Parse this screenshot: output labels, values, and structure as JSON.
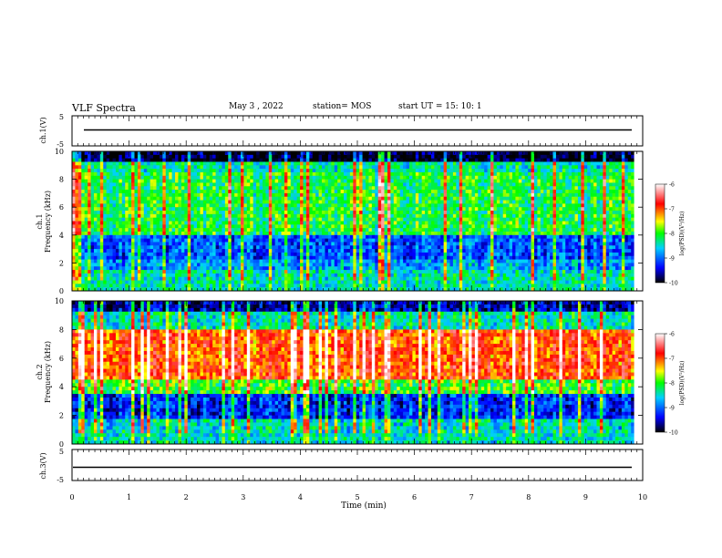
{
  "header": {
    "title": "VLF Spectra",
    "date": "May 3  , 2022",
    "station": "station= MOS",
    "start": "start  UT  =   15: 10: 1"
  },
  "chart_data": [
    {
      "type": "line",
      "name": "ch1-voltage",
      "ylabel": "ch.1(V)",
      "ylim": [
        -5,
        5
      ],
      "yticks": [
        "5",
        "-5"
      ],
      "xlim": [
        0,
        10
      ],
      "approx_level": 0
    },
    {
      "type": "heatmap",
      "name": "ch1-spectrogram",
      "ylabel": "ch.1\nFrequency (kHz)",
      "ylim": [
        0,
        10
      ],
      "yticks": [
        "0",
        "2",
        "4",
        "6",
        "8",
        "10"
      ],
      "xlim": [
        0,
        10
      ],
      "data_end_min": 9.85,
      "colorbar": {
        "label": "log(PSD)(V²/Hz)",
        "range": [
          -10,
          -6
        ],
        "ticks": [
          "-6",
          "-7",
          "-8",
          "-9",
          "-10"
        ]
      },
      "approx_profile_log_psd": {
        "0-1.5kHz": -8.5,
        "1.5-4kHz": -9.2,
        "4-9kHz": -8.2,
        "9-10kHz": -9.8
      }
    },
    {
      "type": "heatmap",
      "name": "ch2-spectrogram",
      "ylabel": "ch.2\nFrequency (kHz)",
      "ylim": [
        0,
        10
      ],
      "yticks": [
        "0",
        "2",
        "4",
        "6",
        "8",
        "10"
      ],
      "xlim": [
        0,
        10
      ],
      "data_end_min": 9.85,
      "colorbar": {
        "label": "log(PSD)(V²/Hz)",
        "range": [
          -10,
          -6
        ],
        "ticks": [
          "-6",
          "-7",
          "-8",
          "-9",
          "-10"
        ]
      },
      "approx_profile_log_psd": {
        "0-1.5kHz": -8.6,
        "1.5-3.5kHz": -9.4,
        "3.5-4.5kHz": -8.0,
        "4.5-8kHz": -7.0,
        "8-9kHz": -8.3,
        "9-10kHz": -9.5
      }
    },
    {
      "type": "line",
      "name": "ch3-voltage",
      "ylabel": "ch.3(V)",
      "ylim": [
        -5,
        5
      ],
      "yticks": [
        "5",
        "-5"
      ],
      "xlim": [
        0,
        10
      ],
      "approx_level": 0
    }
  ],
  "xaxis": {
    "label": "Time (min)",
    "ticks": [
      "0",
      "1",
      "2",
      "3",
      "4",
      "5",
      "6",
      "7",
      "8",
      "9",
      "10"
    ]
  },
  "colors": {
    "cmap": [
      "#000000",
      "#0000ff",
      "#00d0ff",
      "#00ff00",
      "#ffff00",
      "#ff0000",
      "#ffffff"
    ]
  }
}
